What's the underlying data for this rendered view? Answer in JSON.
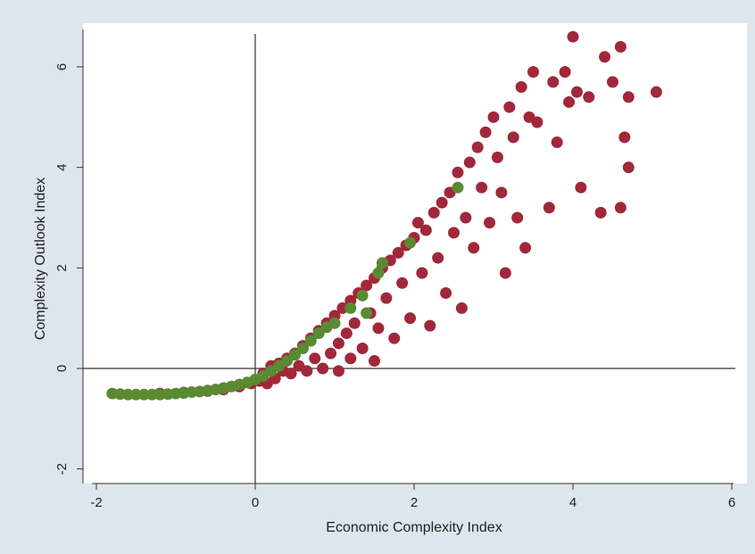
{
  "chart_data": {
    "type": "scatter",
    "xlabel": "Economic Complexity Index",
    "ylabel": "Complexity Outlook Index",
    "xlim": [
      -2.1,
      6
    ],
    "ylim": [
      -2.2,
      6.7
    ],
    "x_ticks": [
      "-2",
      "0",
      "2",
      "4",
      "6"
    ],
    "y_ticks": [
      "-2",
      "0",
      "2",
      "4",
      "6"
    ],
    "reference_lines": {
      "x": 0,
      "y": 0
    },
    "grid": false,
    "legend": "none",
    "series": [
      {
        "color": "#a0283a",
        "points": [
          [
            -1.2,
            -0.5
          ],
          [
            -0.9,
            -0.48
          ],
          [
            -0.6,
            -0.45
          ],
          [
            -0.4,
            -0.42
          ],
          [
            -0.2,
            -0.36
          ],
          [
            -0.05,
            -0.3
          ],
          [
            0.05,
            -0.25
          ],
          [
            0.1,
            -0.1
          ],
          [
            0.15,
            -0.3
          ],
          [
            0.2,
            0.05
          ],
          [
            0.25,
            -0.2
          ],
          [
            0.3,
            0.1
          ],
          [
            0.35,
            -0.05
          ],
          [
            0.4,
            0.2
          ],
          [
            0.45,
            -0.1
          ],
          [
            0.5,
            0.3
          ],
          [
            0.55,
            0.05
          ],
          [
            0.6,
            0.45
          ],
          [
            0.65,
            -0.05
          ],
          [
            0.7,
            0.6
          ],
          [
            0.75,
            0.2
          ],
          [
            0.8,
            0.75
          ],
          [
            0.85,
            0.0
          ],
          [
            0.9,
            0.9
          ],
          [
            0.95,
            0.3
          ],
          [
            1.0,
            1.05
          ],
          [
            1.05,
            0.5
          ],
          [
            1.05,
            -0.05
          ],
          [
            1.1,
            1.2
          ],
          [
            1.15,
            0.7
          ],
          [
            1.2,
            1.35
          ],
          [
            1.2,
            0.2
          ],
          [
            1.25,
            0.9
          ],
          [
            1.3,
            1.5
          ],
          [
            1.35,
            0.4
          ],
          [
            1.4,
            1.65
          ],
          [
            1.45,
            1.1
          ],
          [
            1.5,
            1.8
          ],
          [
            1.5,
            0.15
          ],
          [
            1.55,
            0.8
          ],
          [
            1.6,
            2.0
          ],
          [
            1.65,
            1.4
          ],
          [
            1.7,
            2.15
          ],
          [
            1.75,
            0.6
          ],
          [
            1.8,
            2.3
          ],
          [
            1.85,
            1.7
          ],
          [
            1.9,
            2.45
          ],
          [
            1.95,
            1.0
          ],
          [
            2.0,
            2.6
          ],
          [
            2.05,
            2.9
          ],
          [
            2.1,
            1.9
          ],
          [
            2.15,
            2.75
          ],
          [
            2.2,
            0.85
          ],
          [
            2.25,
            3.1
          ],
          [
            2.3,
            2.2
          ],
          [
            2.35,
            3.3
          ],
          [
            2.4,
            1.5
          ],
          [
            2.45,
            3.5
          ],
          [
            2.5,
            2.7
          ],
          [
            2.55,
            3.9
          ],
          [
            2.6,
            1.2
          ],
          [
            2.65,
            3.0
          ],
          [
            2.7,
            4.1
          ],
          [
            2.75,
            2.4
          ],
          [
            2.8,
            4.4
          ],
          [
            2.85,
            3.6
          ],
          [
            2.9,
            4.7
          ],
          [
            2.95,
            2.9
          ],
          [
            3.0,
            5.0
          ],
          [
            3.05,
            4.2
          ],
          [
            3.1,
            3.5
          ],
          [
            3.15,
            1.9
          ],
          [
            3.2,
            5.2
          ],
          [
            3.25,
            4.6
          ],
          [
            3.3,
            3.0
          ],
          [
            3.35,
            5.6
          ],
          [
            3.4,
            2.4
          ],
          [
            3.45,
            5.0
          ],
          [
            3.5,
            5.9
          ],
          [
            3.55,
            4.9
          ],
          [
            3.7,
            3.2
          ],
          [
            3.75,
            5.7
          ],
          [
            3.8,
            4.5
          ],
          [
            3.9,
            5.9
          ],
          [
            3.95,
            5.3
          ],
          [
            4.0,
            6.6
          ],
          [
            4.05,
            5.5
          ],
          [
            4.1,
            3.6
          ],
          [
            4.2,
            5.4
          ],
          [
            4.35,
            3.1
          ],
          [
            4.4,
            6.2
          ],
          [
            4.5,
            5.7
          ],
          [
            4.6,
            3.2
          ],
          [
            4.6,
            6.4
          ],
          [
            4.65,
            4.6
          ],
          [
            4.7,
            4.0
          ],
          [
            4.7,
            5.4
          ],
          [
            5.05,
            5.5
          ]
        ]
      },
      {
        "color": "#5a8a32",
        "points": [
          [
            -1.8,
            -0.5
          ],
          [
            -1.7,
            -0.51
          ],
          [
            -1.6,
            -0.52
          ],
          [
            -1.5,
            -0.52
          ],
          [
            -1.4,
            -0.52
          ],
          [
            -1.3,
            -0.52
          ],
          [
            -1.2,
            -0.52
          ],
          [
            -1.1,
            -0.51
          ],
          [
            -1.0,
            -0.5
          ],
          [
            -0.9,
            -0.49
          ],
          [
            -0.8,
            -0.47
          ],
          [
            -0.7,
            -0.46
          ],
          [
            -0.6,
            -0.44
          ],
          [
            -0.5,
            -0.42
          ],
          [
            -0.4,
            -0.39
          ],
          [
            -0.3,
            -0.36
          ],
          [
            -0.2,
            -0.32
          ],
          [
            -0.1,
            -0.28
          ],
          [
            0.0,
            -0.22
          ],
          [
            0.1,
            -0.15
          ],
          [
            0.2,
            -0.05
          ],
          [
            0.3,
            0.05
          ],
          [
            0.4,
            0.15
          ],
          [
            0.5,
            0.27
          ],
          [
            0.6,
            0.4
          ],
          [
            0.7,
            0.55
          ],
          [
            0.8,
            0.7
          ],
          [
            0.9,
            0.82
          ],
          [
            1.0,
            0.9
          ],
          [
            1.2,
            1.2
          ],
          [
            1.35,
            1.45
          ],
          [
            1.4,
            1.1
          ],
          [
            1.55,
            1.9
          ],
          [
            1.6,
            2.1
          ],
          [
            1.95,
            2.5
          ],
          [
            2.55,
            3.6
          ]
        ]
      }
    ]
  }
}
